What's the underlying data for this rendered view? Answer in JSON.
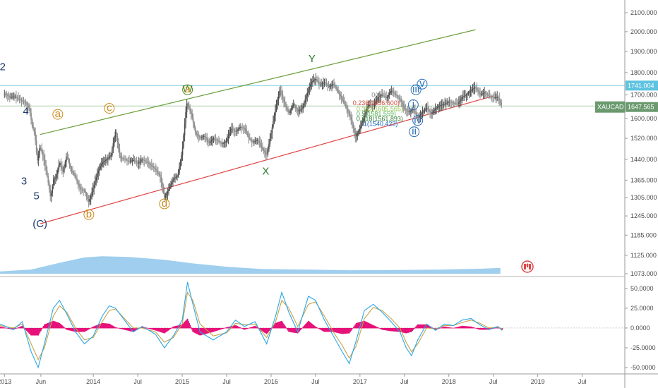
{
  "symbol": "XAUCAD",
  "colors": {
    "candle_up": "#4d4d4d",
    "candle_down": "#8a8a8a",
    "ma_fast": "#3f51d6",
    "ma_slow": "#3a4fd0",
    "upper_channel": "#6b9e3a",
    "lower_channel": "#e04545",
    "volume": "#7fbde8",
    "osc_line1": "#2aa7e8",
    "osc_line2": "#c8a24a",
    "osc_hist": "#e6127a",
    "last_price_bg": "#6a9a6e",
    "high_line_bg": "#5ec3e0"
  },
  "chart_data": [
    {
      "type": "line",
      "title": "",
      "series_name": "XAUCAD",
      "y_ticks": [
        "2100.000",
        "2000.000",
        "1900.000",
        "1800.000",
        "1700.000",
        "1600.000",
        "1520.000",
        "1440.000",
        "1365.000",
        "1305.000",
        "1245.000",
        "1185.000",
        "1125.000",
        "1073.000"
      ],
      "y_log": true,
      "x_ticks": [
        "2013",
        "Jun",
        "2014",
        "Jul",
        "2015",
        "Jul",
        "2016",
        "Jul",
        "2017",
        "Jul",
        "2018",
        "Jul",
        "2019",
        "Jul"
      ],
      "price_labels": {
        "high_line": "1741.004",
        "last": "1647.565",
        "symbol": "XAUCAD"
      },
      "close": [
        [
          2013.0,
          1705
        ],
        [
          2013.06,
          1690
        ],
        [
          2013.12,
          1692
        ],
        [
          2013.18,
          1678
        ],
        [
          2013.24,
          1665
        ],
        [
          2013.28,
          1640
        ],
        [
          2013.31,
          1572
        ],
        [
          2013.34,
          1540
        ],
        [
          2013.37,
          1432
        ],
        [
          2013.4,
          1490
        ],
        [
          2013.44,
          1445
        ],
        [
          2013.48,
          1380
        ],
        [
          2013.52,
          1302
        ],
        [
          2013.55,
          1368
        ],
        [
          2013.58,
          1375
        ],
        [
          2013.62,
          1430
        ],
        [
          2013.66,
          1395
        ],
        [
          2013.7,
          1455
        ],
        [
          2013.75,
          1400
        ],
        [
          2013.8,
          1375
        ],
        [
          2013.85,
          1335
        ],
        [
          2013.9,
          1328
        ],
        [
          2013.95,
          1290
        ],
        [
          2014.0,
          1340
        ],
        [
          2014.05,
          1395
        ],
        [
          2014.1,
          1428
        ],
        [
          2014.15,
          1440
        ],
        [
          2014.2,
          1455
        ],
        [
          2014.25,
          1550
        ],
        [
          2014.3,
          1445
        ],
        [
          2014.35,
          1442
        ],
        [
          2014.4,
          1432
        ],
        [
          2014.45,
          1438
        ],
        [
          2014.5,
          1425
        ],
        [
          2014.55,
          1440
        ],
        [
          2014.6,
          1430
        ],
        [
          2014.65,
          1418
        ],
        [
          2014.7,
          1403
        ],
        [
          2014.75,
          1380
        ],
        [
          2014.8,
          1305
        ],
        [
          2014.85,
          1335
        ],
        [
          2014.9,
          1370
        ],
        [
          2014.95,
          1380
        ],
        [
          2015.0,
          1470
        ],
        [
          2015.05,
          1665
        ],
        [
          2015.1,
          1620
        ],
        [
          2015.15,
          1540
        ],
        [
          2015.2,
          1522
        ],
        [
          2015.25,
          1530
        ],
        [
          2015.3,
          1500
        ],
        [
          2015.35,
          1520
        ],
        [
          2015.4,
          1510
        ],
        [
          2015.45,
          1498
        ],
        [
          2015.5,
          1510
        ],
        [
          2015.55,
          1560
        ],
        [
          2015.6,
          1545
        ],
        [
          2015.65,
          1565
        ],
        [
          2015.7,
          1560
        ],
        [
          2015.75,
          1520
        ],
        [
          2015.8,
          1505
        ],
        [
          2015.85,
          1515
        ],
        [
          2015.9,
          1480
        ],
        [
          2015.95,
          1455
        ],
        [
          2016.0,
          1540
        ],
        [
          2016.05,
          1640
        ],
        [
          2016.1,
          1725
        ],
        [
          2016.15,
          1660
        ],
        [
          2016.2,
          1620
        ],
        [
          2016.25,
          1660
        ],
        [
          2016.3,
          1630
        ],
        [
          2016.35,
          1640
        ],
        [
          2016.4,
          1700
        ],
        [
          2016.45,
          1755
        ],
        [
          2016.5,
          1772
        ],
        [
          2016.55,
          1745
        ],
        [
          2016.6,
          1755
        ],
        [
          2016.65,
          1735
        ],
        [
          2016.7,
          1750
        ],
        [
          2016.75,
          1715
        ],
        [
          2016.8,
          1680
        ],
        [
          2016.85,
          1642
        ],
        [
          2016.9,
          1595
        ],
        [
          2016.95,
          1525
        ],
        [
          2017.0,
          1560
        ],
        [
          2017.05,
          1610
        ],
        [
          2017.1,
          1660
        ],
        [
          2017.15,
          1650
        ],
        [
          2017.2,
          1690
        ],
        [
          2017.25,
          1700
        ],
        [
          2017.3,
          1685
        ],
        [
          2017.35,
          1720
        ],
        [
          2017.4,
          1700
        ],
        [
          2017.45,
          1680
        ],
        [
          2017.5,
          1640
        ],
        [
          2017.55,
          1625
        ],
        [
          2017.6,
          1640
        ],
        [
          2017.65,
          1600
        ],
        [
          2017.7,
          1625
        ],
        [
          2017.75,
          1645
        ],
        [
          2017.8,
          1620
        ],
        [
          2017.85,
          1640
        ],
        [
          2017.9,
          1655
        ],
        [
          2017.95,
          1660
        ],
        [
          2018.0,
          1670
        ],
        [
          2018.05,
          1665
        ],
        [
          2018.1,
          1660
        ],
        [
          2018.15,
          1690
        ],
        [
          2018.2,
          1700
        ],
        [
          2018.25,
          1720
        ],
        [
          2018.3,
          1735
        ],
        [
          2018.35,
          1700
        ],
        [
          2018.4,
          1710
        ],
        [
          2018.45,
          1695
        ],
        [
          2018.5,
          1688
        ],
        [
          2018.55,
          1690
        ],
        [
          2018.6,
          1648
        ]
      ],
      "channels": [
        {
          "name": "upper",
          "points": [
            [
              2013.4,
              1535
            ],
            [
              2018.3,
              2010
            ]
          ]
        },
        {
          "name": "lower",
          "points": [
            [
              2013.4,
              1220
            ],
            [
              2018.5,
              1695
            ]
          ]
        }
      ],
      "horizontal_lines": [
        1741.004,
        1652
      ],
      "wave_labels": [
        {
          "text": "2",
          "x": 2012.98,
          "y": 1812,
          "color": "#1f3a6b"
        },
        {
          "text": "4",
          "x": 2013.24,
          "y": 1615,
          "color": "#1f3a6b"
        },
        {
          "text": "3",
          "x": 2013.22,
          "y": 1350,
          "color": "#1f3a6b"
        },
        {
          "text": "5",
          "x": 2013.36,
          "y": 1300,
          "color": "#1f3a6b"
        },
        {
          "text": "(C)",
          "x": 2013.4,
          "y": 1210,
          "color": "#1f3a6b"
        },
        {
          "text": "a",
          "x": 2013.6,
          "y": 1605,
          "color": "#c88a1a",
          "circle": true
        },
        {
          "text": "b",
          "x": 2013.95,
          "y": 1240,
          "color": "#c88a1a",
          "circle": true
        },
        {
          "text": "c",
          "x": 2014.18,
          "y": 1630,
          "color": "#c88a1a",
          "circle": true
        },
        {
          "text": "d",
          "x": 2014.8,
          "y": 1275,
          "color": "#c88a1a",
          "circle": true
        },
        {
          "text": "W",
          "x": 2015.06,
          "y": 1710,
          "color": "#4f8a2a",
          "circle": true
        },
        {
          "text": "a",
          "x": 2015.06,
          "y": 1710,
          "color": "#c88a1a"
        },
        {
          "text": "X",
          "x": 2015.94,
          "y": 1385,
          "color": "#2e7a2e"
        },
        {
          "text": "Y",
          "x": 2016.46,
          "y": 1850,
          "color": "#2e7a2e"
        },
        {
          "text": "iii",
          "x": 2017.63,
          "y": 1710,
          "color": "#2a6fb5",
          "circle": true
        },
        {
          "text": "v",
          "x": 2017.7,
          "y": 1735,
          "color": "#2a6fb5",
          "circle": true
        },
        {
          "text": "i",
          "x": 2017.6,
          "y": 1645,
          "color": "#2a6fb5",
          "circle": true
        },
        {
          "text": "iv",
          "x": 2017.65,
          "y": 1580,
          "color": "#2a6fb5",
          "circle": true
        },
        {
          "text": "ii",
          "x": 2017.61,
          "y": 1535,
          "color": "#2a6fb5",
          "circle": true
        }
      ],
      "fib_labels": [
        {
          "text": "0(1",
          "x": 2017.13,
          "y": 1690,
          "color": "#888888"
        },
        {
          "text": "0.236(1636.600)",
          "x": 2016.92,
          "y": 1655,
          "color": "#d24a3a"
        },
        {
          "text": "0.382(1605.565)",
          "x": 2016.96,
          "y": 1630,
          "color": "#8bc34a"
        },
        {
          "text": "0.5(1581.559)",
          "x": 2016.96,
          "y": 1610,
          "color": "#4caf50"
        },
        {
          "text": "0.618(1561.893)",
          "x": 2016.96,
          "y": 1590,
          "color": "#2e7d32"
        },
        {
          "text": "1(1540.423)",
          "x": 2017.04,
          "y": 1570,
          "color": "#1565c0"
        }
      ]
    },
    {
      "type": "area",
      "title": "",
      "series_name": "Volume",
      "relative_volume": [
        [
          2012.95,
          0.1
        ],
        [
          2013.3,
          0.18
        ],
        [
          2013.6,
          0.45
        ],
        [
          2013.9,
          0.7
        ],
        [
          2014.1,
          0.75
        ],
        [
          2014.4,
          0.72
        ],
        [
          2014.8,
          0.6
        ],
        [
          2015.1,
          0.45
        ],
        [
          2015.5,
          0.3
        ],
        [
          2015.9,
          0.2
        ],
        [
          2016.4,
          0.18
        ],
        [
          2016.9,
          0.15
        ],
        [
          2017.4,
          0.16
        ],
        [
          2017.9,
          0.18
        ],
        [
          2018.4,
          0.22
        ],
        [
          2018.58,
          0.25
        ]
      ]
    },
    {
      "type": "line",
      "title": "",
      "series_name": "Oscillator",
      "y_ticks": [
        "50.0000",
        "25.0000",
        "0.0000",
        "-25.0000",
        "-50.0000"
      ],
      "y_range": [
        -58,
        65
      ],
      "line1": [
        [
          2012.95,
          5
        ],
        [
          2013.1,
          -2
        ],
        [
          2013.2,
          8
        ],
        [
          2013.3,
          -30
        ],
        [
          2013.38,
          -50
        ],
        [
          2013.45,
          -20
        ],
        [
          2013.55,
          25
        ],
        [
          2013.62,
          35
        ],
        [
          2013.7,
          18
        ],
        [
          2013.8,
          -5
        ],
        [
          2013.9,
          -20
        ],
        [
          2014.0,
          -10
        ],
        [
          2014.1,
          15
        ],
        [
          2014.18,
          28
        ],
        [
          2014.25,
          25
        ],
        [
          2014.35,
          10
        ],
        [
          2014.45,
          -5
        ],
        [
          2014.55,
          2
        ],
        [
          2014.7,
          -8
        ],
        [
          2014.8,
          -25
        ],
        [
          2014.9,
          -10
        ],
        [
          2015.0,
          10
        ],
        [
          2015.06,
          58
        ],
        [
          2015.12,
          30
        ],
        [
          2015.2,
          -5
        ],
        [
          2015.35,
          -15
        ],
        [
          2015.5,
          -5
        ],
        [
          2015.6,
          10
        ],
        [
          2015.7,
          2
        ],
        [
          2015.82,
          8
        ],
        [
          2015.95,
          -20
        ],
        [
          2016.05,
          15
        ],
        [
          2016.12,
          45
        ],
        [
          2016.2,
          20
        ],
        [
          2016.3,
          -5
        ],
        [
          2016.42,
          40
        ],
        [
          2016.5,
          35
        ],
        [
          2016.6,
          10
        ],
        [
          2016.7,
          -10
        ],
        [
          2016.8,
          -30
        ],
        [
          2016.88,
          -45
        ],
        [
          2016.96,
          -15
        ],
        [
          2017.05,
          22
        ],
        [
          2017.15,
          30
        ],
        [
          2017.25,
          20
        ],
        [
          2017.35,
          8
        ],
        [
          2017.45,
          -5
        ],
        [
          2017.52,
          -25
        ],
        [
          2017.58,
          -35
        ],
        [
          2017.65,
          -15
        ],
        [
          2017.75,
          5
        ],
        [
          2017.85,
          -3
        ],
        [
          2017.95,
          5
        ],
        [
          2018.05,
          3
        ],
        [
          2018.15,
          10
        ],
        [
          2018.25,
          12
        ],
        [
          2018.35,
          4
        ],
        [
          2018.45,
          -2
        ],
        [
          2018.55,
          2
        ],
        [
          2018.6,
          -3
        ]
      ],
      "line2": [
        [
          2012.95,
          3
        ],
        [
          2013.1,
          0
        ],
        [
          2013.2,
          5
        ],
        [
          2013.3,
          -20
        ],
        [
          2013.38,
          -40
        ],
        [
          2013.45,
          -25
        ],
        [
          2013.55,
          15
        ],
        [
          2013.62,
          28
        ],
        [
          2013.7,
          20
        ],
        [
          2013.8,
          0
        ],
        [
          2013.9,
          -15
        ],
        [
          2014.0,
          -12
        ],
        [
          2014.1,
          8
        ],
        [
          2014.18,
          22
        ],
        [
          2014.25,
          24
        ],
        [
          2014.35,
          12
        ],
        [
          2014.45,
          0
        ],
        [
          2014.55,
          0
        ],
        [
          2014.7,
          -5
        ],
        [
          2014.8,
          -18
        ],
        [
          2014.9,
          -12
        ],
        [
          2015.0,
          5
        ],
        [
          2015.06,
          45
        ],
        [
          2015.12,
          35
        ],
        [
          2015.2,
          5
        ],
        [
          2015.35,
          -10
        ],
        [
          2015.5,
          -6
        ],
        [
          2015.6,
          6
        ],
        [
          2015.7,
          4
        ],
        [
          2015.82,
          5
        ],
        [
          2015.95,
          -12
        ],
        [
          2016.05,
          8
        ],
        [
          2016.12,
          35
        ],
        [
          2016.2,
          25
        ],
        [
          2016.3,
          2
        ],
        [
          2016.42,
          30
        ],
        [
          2016.5,
          33
        ],
        [
          2016.6,
          15
        ],
        [
          2016.7,
          -5
        ],
        [
          2016.8,
          -22
        ],
        [
          2016.88,
          -38
        ],
        [
          2016.96,
          -22
        ],
        [
          2017.05,
          12
        ],
        [
          2017.15,
          26
        ],
        [
          2017.25,
          22
        ],
        [
          2017.35,
          12
        ],
        [
          2017.45,
          0
        ],
        [
          2017.52,
          -18
        ],
        [
          2017.58,
          -30
        ],
        [
          2017.65,
          -20
        ],
        [
          2017.75,
          0
        ],
        [
          2017.85,
          -1
        ],
        [
          2017.95,
          3
        ],
        [
          2018.05,
          3
        ],
        [
          2018.15,
          7
        ],
        [
          2018.25,
          10
        ],
        [
          2018.35,
          6
        ],
        [
          2018.45,
          0
        ],
        [
          2018.55,
          1
        ],
        [
          2018.6,
          -1
        ]
      ]
    }
  ]
}
